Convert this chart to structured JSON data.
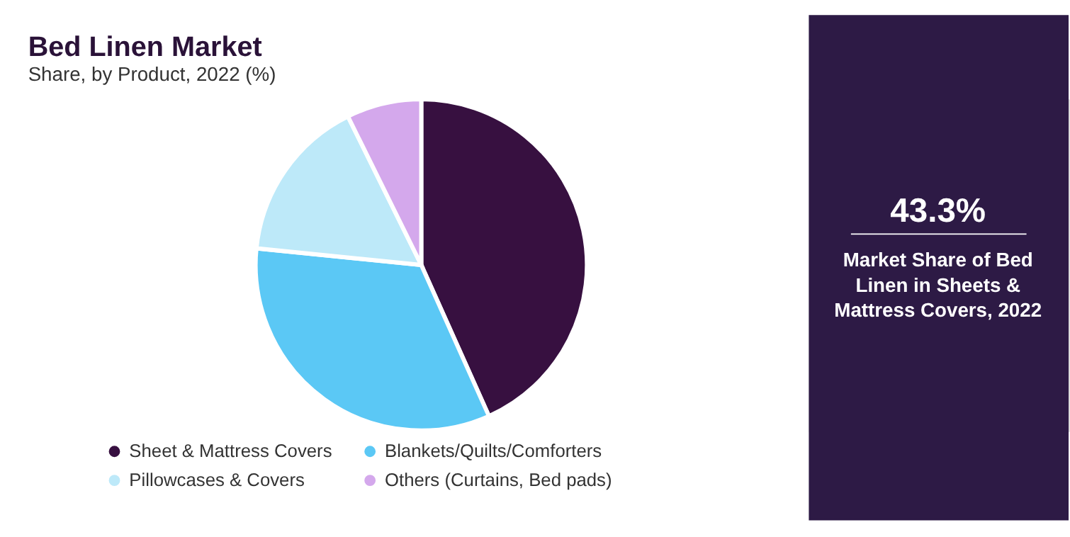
{
  "chart_data": {
    "type": "pie",
    "title": "Bed Linen Market",
    "subtitle": "Share, by Product, 2022 (%)",
    "categories": [
      "Sheet & Mattress Covers",
      "Blankets/Quilts/Comforters",
      "Pillowcases & Covers",
      "Others (Curtains, Bed pads)"
    ],
    "values": [
      43.3,
      33.3,
      16.1,
      7.3
    ],
    "colors": [
      "#371040",
      "#5bc8f5",
      "#bde9f9",
      "#d4a8ec"
    ],
    "legend": "bottom",
    "annotations": [
      "43.3%",
      "Market Share of Bed Linen in Sheets & Mattress Covers, 2022"
    ]
  }
}
